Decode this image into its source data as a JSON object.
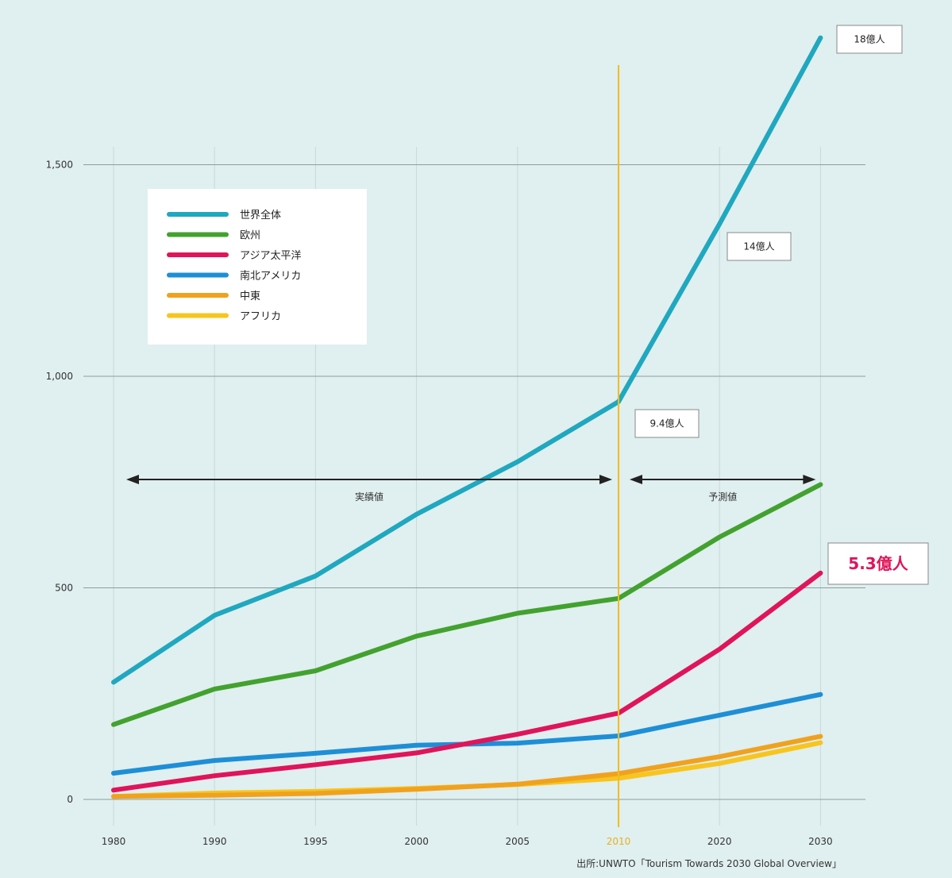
{
  "chart_data": {
    "type": "line",
    "x": [
      "1980",
      "1990",
      "1995",
      "2000",
      "2005",
      "2010",
      "2020",
      "2030"
    ],
    "x_values": [
      1980,
      1990,
      1995,
      2000,
      2005,
      2010,
      2020,
      2030
    ],
    "ylim": [
      0,
      1800
    ],
    "yticks": [
      0,
      500,
      1000,
      1500
    ],
    "ytick_labels": [
      "0",
      "500",
      "1,000",
      "1,500"
    ],
    "highlight_x": "2010",
    "grid": "horizontal and vertical",
    "legend_position": "upper-left",
    "series": [
      {
        "name": "世界全体",
        "color": "#1fa8bf",
        "values": [
          277,
          435,
          528,
          674,
          798,
          940,
          1360,
          1800
        ]
      },
      {
        "name": "欧州",
        "color": "#43a22f",
        "values": [
          177,
          261,
          304,
          386,
          440,
          475,
          620,
          744
        ]
      },
      {
        "name": "アジア太平洋",
        "color": "#e0145a",
        "values": [
          22,
          56,
          82,
          110,
          154,
          204,
          355,
          535
        ]
      },
      {
        "name": "南北アメリカ",
        "color": "#1e8fd6",
        "values": [
          62,
          92,
          109,
          128,
          133,
          150,
          199,
          248
        ]
      },
      {
        "name": "中東",
        "color": "#f0a21e",
        "values": [
          7,
          10,
          14,
          24,
          36,
          61,
          101,
          149
        ]
      },
      {
        "name": "アフリカ",
        "color": "#f7c51e",
        "values": [
          7,
          15,
          19,
          26,
          35,
          50,
          85,
          134
        ]
      }
    ],
    "annotations": [
      {
        "text": "18億人",
        "x": "2030",
        "near": "世界全体"
      },
      {
        "text": "14億人",
        "x": "2020",
        "near": "世界全体"
      },
      {
        "text": "9.4億人",
        "x": "2010",
        "near": "世界全体"
      },
      {
        "text": "5.3億人",
        "x": "2030",
        "near": "アジア太平洋",
        "emphasis": true
      }
    ],
    "ranges": [
      {
        "label": "実績値",
        "from": "1980",
        "to": "2010"
      },
      {
        "label": "予測値",
        "from": "2010",
        "to": "2030"
      }
    ],
    "source": "出所:UNWTO「Tourism Towards 2030 Global Overview」"
  },
  "colors": {
    "background": "#e0efef",
    "gridline": "#8e9c9c",
    "vertical_grid": "#c6dada",
    "highlight_line": "#f0bd1e",
    "highlight_label": "#e8b020",
    "emphasis_text": "#e0145a"
  }
}
